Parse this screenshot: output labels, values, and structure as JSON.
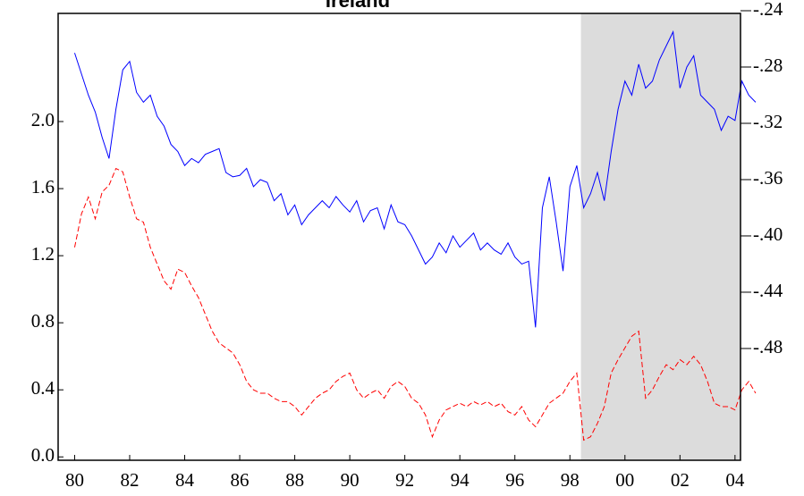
{
  "chart_data": {
    "type": "line",
    "title": "Ireland",
    "x": [
      80,
      80.25,
      80.5,
      80.75,
      81,
      81.25,
      81.5,
      81.75,
      82,
      82.25,
      82.5,
      82.75,
      83,
      83.25,
      83.5,
      83.75,
      84,
      84.25,
      84.5,
      84.75,
      85,
      85.25,
      85.5,
      85.75,
      86,
      86.25,
      86.5,
      86.75,
      87,
      87.25,
      87.5,
      87.75,
      88,
      88.25,
      88.5,
      88.75,
      89,
      89.25,
      89.5,
      89.75,
      90,
      90.25,
      90.5,
      90.75,
      91,
      91.25,
      91.5,
      91.75,
      92,
      92.25,
      92.5,
      92.75,
      93,
      93.25,
      93.5,
      93.75,
      94,
      94.25,
      94.5,
      94.75,
      95,
      95.25,
      95.5,
      95.75,
      96,
      96.25,
      96.5,
      96.75,
      97,
      97.25,
      97.5,
      97.75,
      98,
      98.25,
      98.5,
      98.75,
      99,
      99.25,
      99.5,
      99.75,
      100,
      100.25,
      100.5,
      100.75,
      101,
      101.25,
      101.5,
      101.75,
      102,
      102.25,
      102.5,
      102.75,
      103,
      103.25,
      103.5,
      103.75,
      104,
      104.25,
      104.5,
      104.75
    ],
    "series": [
      {
        "color": "#0000ff",
        "axis": "y2",
        "line_style": "solid",
        "values": [
          -0.27,
          -0.285,
          -0.3,
          -0.312,
          -0.33,
          -0.345,
          -0.31,
          -0.282,
          -0.276,
          -0.298,
          -0.305,
          -0.3,
          -0.315,
          -0.322,
          -0.335,
          -0.34,
          -0.35,
          -0.345,
          -0.348,
          -0.342,
          -0.34,
          -0.338,
          -0.355,
          -0.358,
          -0.357,
          -0.352,
          -0.365,
          -0.36,
          -0.362,
          -0.375,
          -0.37,
          -0.385,
          -0.378,
          -0.392,
          -0.385,
          -0.38,
          -0.375,
          -0.38,
          -0.372,
          -0.378,
          -0.383,
          -0.375,
          -0.39,
          -0.382,
          -0.38,
          -0.395,
          -0.378,
          -0.39,
          -0.392,
          -0.4,
          -0.41,
          -0.42,
          -0.415,
          -0.405,
          -0.412,
          -0.4,
          -0.408,
          -0.403,
          -0.398,
          -0.41,
          -0.405,
          -0.41,
          -0.413,
          -0.405,
          -0.415,
          -0.42,
          -0.418,
          -0.465,
          -0.38,
          -0.358,
          -0.39,
          -0.425,
          -0.365,
          -0.35,
          -0.38,
          -0.37,
          -0.355,
          -0.375,
          -0.34,
          -0.31,
          -0.29,
          -0.3,
          -0.278,
          -0.295,
          -0.29,
          -0.275,
          -0.265,
          -0.255,
          -0.295,
          -0.28,
          -0.272,
          -0.3,
          -0.305,
          -0.31,
          -0.325,
          -0.315,
          -0.318,
          -0.29,
          -0.3,
          -0.305
        ]
      },
      {
        "color": "#ff0000",
        "axis": "y",
        "line_style": "dashed",
        "values": [
          1.25,
          1.45,
          1.55,
          1.42,
          1.58,
          1.62,
          1.72,
          1.7,
          1.55,
          1.42,
          1.4,
          1.25,
          1.15,
          1.05,
          1.0,
          1.12,
          1.1,
          1.02,
          0.95,
          0.85,
          0.75,
          0.68,
          0.65,
          0.62,
          0.55,
          0.45,
          0.4,
          0.38,
          0.38,
          0.35,
          0.33,
          0.33,
          0.3,
          0.25,
          0.3,
          0.35,
          0.38,
          0.4,
          0.45,
          0.48,
          0.5,
          0.4,
          0.35,
          0.38,
          0.4,
          0.35,
          0.42,
          0.45,
          0.42,
          0.35,
          0.32,
          0.25,
          0.12,
          0.22,
          0.28,
          0.3,
          0.32,
          0.3,
          0.33,
          0.31,
          0.33,
          0.3,
          0.32,
          0.27,
          0.25,
          0.3,
          0.22,
          0.18,
          0.25,
          0.32,
          0.35,
          0.38,
          0.45,
          0.5,
          0.1,
          0.12,
          0.2,
          0.3,
          0.5,
          0.58,
          0.65,
          0.72,
          0.75,
          0.35,
          0.4,
          0.48,
          0.55,
          0.52,
          0.58,
          0.55,
          0.6,
          0.55,
          0.45,
          0.32,
          0.3,
          0.3,
          0.28,
          0.4,
          0.45,
          0.38
        ]
      }
    ],
    "xlim": [
      79.4,
      104.2
    ],
    "xticks": [
      80,
      82,
      84,
      86,
      88,
      90,
      92,
      94,
      96,
      98,
      {
        "value": 100,
        "label": "00"
      },
      {
        "value": 102,
        "label": "02"
      },
      {
        "value": 104,
        "label": "04"
      }
    ],
    "ylim": [
      -0.02,
      2.645
    ],
    "yticks": [
      {
        "value": 0,
        "label": "0.0"
      },
      0.4,
      0.8,
      1.2,
      1.6,
      {
        "value": 2,
        "label": "2.0"
      }
    ],
    "y2lim": [
      -0.5594,
      -0.2419
    ],
    "y2ticks": [
      {
        "value": -0.24,
        "label": "-.24"
      },
      {
        "value": -0.28,
        "label": "-.28"
      },
      {
        "value": -0.32,
        "label": "-.32"
      },
      {
        "value": -0.36,
        "label": "-.36"
      },
      {
        "value": -0.4,
        "label": "-.40"
      },
      {
        "value": -0.44,
        "label": "-.44"
      },
      {
        "value": -0.48,
        "label": "-.48"
      }
    ],
    "shade_x": [
      98.4,
      104.2
    ],
    "shade_color": "#dcdcdc",
    "grid": false
  }
}
